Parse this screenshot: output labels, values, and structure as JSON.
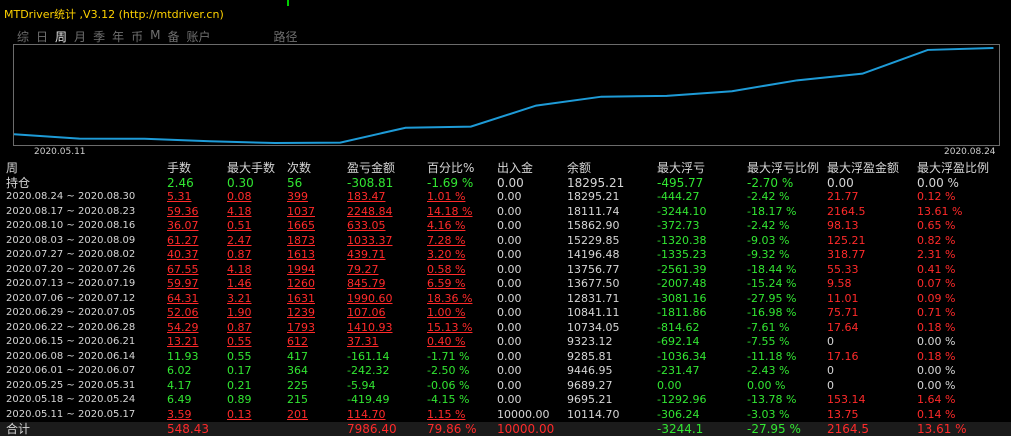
{
  "window": {
    "title": "MTDriver统计 ,V3.12 (http://mtdriver.cn)"
  },
  "tabs": [
    {
      "label": "综",
      "active": false
    },
    {
      "label": "日",
      "active": false
    },
    {
      "label": "周",
      "active": true
    },
    {
      "label": "月",
      "active": false
    },
    {
      "label": "季",
      "active": false
    },
    {
      "label": "年",
      "active": false
    },
    {
      "label": "币",
      "active": false
    },
    {
      "label": "M",
      "active": false
    },
    {
      "label": "备",
      "active": false
    },
    {
      "label": "账户",
      "active": false
    },
    {
      "label": "路径",
      "active": false
    }
  ],
  "chart_data": {
    "type": "line",
    "x_start_label": "2020.05.11",
    "x_end_label": "2020.08.24",
    "x": [
      "2020.05.11",
      "2020.05.18",
      "2020.05.25",
      "2020.06.01",
      "2020.06.08",
      "2020.06.15",
      "2020.06.22",
      "2020.06.29",
      "2020.07.06",
      "2020.07.13",
      "2020.07.20",
      "2020.07.27",
      "2020.08.03",
      "2020.08.10",
      "2020.08.17",
      "2020.08.24"
    ],
    "series": [
      {
        "values": [
          10114.7,
          9695.21,
          9689.27,
          9446.95,
          9285.81,
          9323.12,
          10734.05,
          10841.11,
          12831.71,
          13677.5,
          13756.77,
          14196.48,
          15229.85,
          15862.9,
          18111.74,
          18295.21
        ]
      }
    ],
    "color": "#1e9bd7",
    "grid": false
  },
  "table": {
    "headers": [
      "周",
      "手数",
      "最大手数",
      "次数",
      "盈亏金额",
      "百分比%",
      "出入金",
      "余额",
      "最大浮亏",
      "最大浮亏比例",
      "最大浮盈金额",
      "最大浮盈比例"
    ],
    "hold": [
      "持仓",
      "2.46",
      "0.30",
      "56",
      "-308.81",
      "-1.69 %",
      "0.00",
      "18295.21",
      "-495.77",
      "-2.70 %",
      "0.00",
      "0.00 %"
    ],
    "rows": [
      [
        "2020.08.24 ~ 2020.08.30",
        "5.31",
        "0.08",
        "399",
        "183.47",
        "1.01 %",
        "0.00",
        "18295.21",
        "-444.27",
        "-2.42 %",
        "21.77",
        "0.12 %"
      ],
      [
        "2020.08.17 ~ 2020.08.23",
        "59.36",
        "4.18",
        "1037",
        "2248.84",
        "14.18 %",
        "0.00",
        "18111.74",
        "-3244.10",
        "-18.17 %",
        "2164.5",
        "13.61 %"
      ],
      [
        "2020.08.10 ~ 2020.08.16",
        "36.07",
        "0.51",
        "1665",
        "633.05",
        "4.16 %",
        "0.00",
        "15862.90",
        "-372.73",
        "-2.42 %",
        "98.13",
        "0.65 %"
      ],
      [
        "2020.08.03 ~ 2020.08.09",
        "61.27",
        "2.47",
        "1873",
        "1033.37",
        "7.28 %",
        "0.00",
        "15229.85",
        "-1320.38",
        "-9.03 %",
        "125.21",
        "0.82 %"
      ],
      [
        "2020.07.27 ~ 2020.08.02",
        "40.37",
        "0.87",
        "1613",
        "439.71",
        "3.20 %",
        "0.00",
        "14196.48",
        "-1335.23",
        "-9.32 %",
        "318.77",
        "2.31 %"
      ],
      [
        "2020.07.20 ~ 2020.07.26",
        "67.55",
        "4.18",
        "1994",
        "79.27",
        "0.58 %",
        "0.00",
        "13756.77",
        "-2561.39",
        "-18.44 %",
        "55.33",
        "0.41 %"
      ],
      [
        "2020.07.13 ~ 2020.07.19",
        "59.97",
        "1.46",
        "1260",
        "845.79",
        "6.59 %",
        "0.00",
        "13677.50",
        "-2007.48",
        "-15.24 %",
        "9.58",
        "0.07 %"
      ],
      [
        "2020.07.06 ~ 2020.07.12",
        "64.31",
        "3.21",
        "1631",
        "1990.60",
        "18.36 %",
        "0.00",
        "12831.71",
        "-3081.16",
        "-27.95 %",
        "11.01",
        "0.09 %"
      ],
      [
        "2020.06.29 ~ 2020.07.05",
        "52.06",
        "1.90",
        "1239",
        "107.06",
        "1.00 %",
        "0.00",
        "10841.11",
        "-1811.86",
        "-16.98 %",
        "75.71",
        "0.71 %"
      ],
      [
        "2020.06.22 ~ 2020.06.28",
        "54.29",
        "0.87",
        "1793",
        "1410.93",
        "15.13 %",
        "0.00",
        "10734.05",
        "-814.62",
        "-7.61 %",
        "17.64",
        "0.18 %"
      ],
      [
        "2020.06.15 ~ 2020.06.21",
        "13.21",
        "0.55",
        "612",
        "37.31",
        "0.40 %",
        "0.00",
        "9323.12",
        "-692.14",
        "-7.55 %",
        "0",
        "0.00 %"
      ],
      [
        "2020.06.08 ~ 2020.06.14",
        "11.93",
        "0.55",
        "417",
        "-161.14",
        "-1.71 %",
        "0.00",
        "9285.81",
        "-1036.34",
        "-11.18 %",
        "17.16",
        "0.18 %"
      ],
      [
        "2020.06.01 ~ 2020.06.07",
        "6.02",
        "0.17",
        "364",
        "-242.32",
        "-2.50 %",
        "0.00",
        "9446.95",
        "-231.47",
        "-2.43 %",
        "0",
        "0.00 %"
      ],
      [
        "2020.05.25 ~ 2020.05.31",
        "4.17",
        "0.21",
        "225",
        "-5.94",
        "-0.06 %",
        "0.00",
        "9689.27",
        "0.00",
        "0.00 %",
        "0",
        "0.00 %"
      ],
      [
        "2020.05.18 ~ 2020.05.24",
        "6.49",
        "0.89",
        "215",
        "-419.49",
        "-4.15 %",
        "0.00",
        "9695.21",
        "-1292.96",
        "-13.78 %",
        "153.14",
        "1.64 %"
      ],
      [
        "2020.05.11 ~ 2020.05.17",
        "3.59",
        "0.13",
        "201",
        "114.70",
        "1.15 %",
        "10000.00",
        "10114.70",
        "-306.24",
        "-3.03 %",
        "13.75",
        "0.14 %"
      ]
    ],
    "total": [
      "合计",
      "548.43",
      "",
      "",
      "7986.40",
      "79.86 %",
      "10000.00",
      "",
      "-3244.1",
      "-27.95 %",
      "2164.5",
      "13.61 %"
    ]
  },
  "colors": {
    "profit": "#ff2a2a",
    "loss": "#32e632",
    "neutral": "#d6d6d6",
    "title": "#ffd200",
    "line": "#1e9bd7"
  }
}
